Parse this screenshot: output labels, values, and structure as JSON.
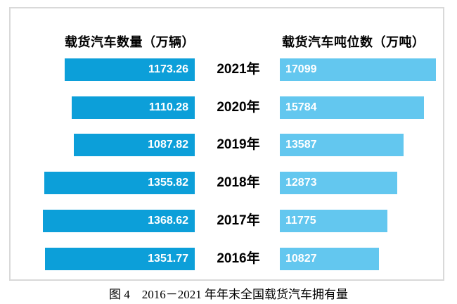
{
  "chart": {
    "left_header": "载货汽车数量（万辆）",
    "right_header": "载货汽车吨位数（万吨）",
    "caption": "图 4　2016－2021 年年末全国载货汽车拥有量",
    "colors": {
      "left_bar": "#0c9fd9",
      "right_bar": "#63c7ef",
      "frame_border": "#d9d9d9",
      "bar_value_text": "#ffffff",
      "year_text": "#000000"
    }
  },
  "chart_data": {
    "type": "bar",
    "orientation": "horizontal",
    "title": "图 4　2016－2021 年年末全国载货汽车拥有量",
    "categories": [
      "2021年",
      "2020年",
      "2019年",
      "2018年",
      "2017年",
      "2016年"
    ],
    "series": [
      {
        "name": "载货汽车数量（万辆）",
        "side": "left",
        "values": [
          1173.26,
          1110.28,
          1087.82,
          1355.82,
          1368.62,
          1351.77
        ],
        "value_decimals": 2
      },
      {
        "name": "载货汽车吨位数（万吨）",
        "side": "right",
        "values": [
          17099,
          15784,
          13587,
          12873,
          11775,
          10827
        ],
        "value_decimals": 0
      }
    ],
    "layout": {
      "grid": false,
      "legend_position": "top",
      "value_labels": "inside",
      "left_axis_baseline": "center-right-aligned",
      "right_axis_baseline": "center-left-aligned"
    }
  }
}
